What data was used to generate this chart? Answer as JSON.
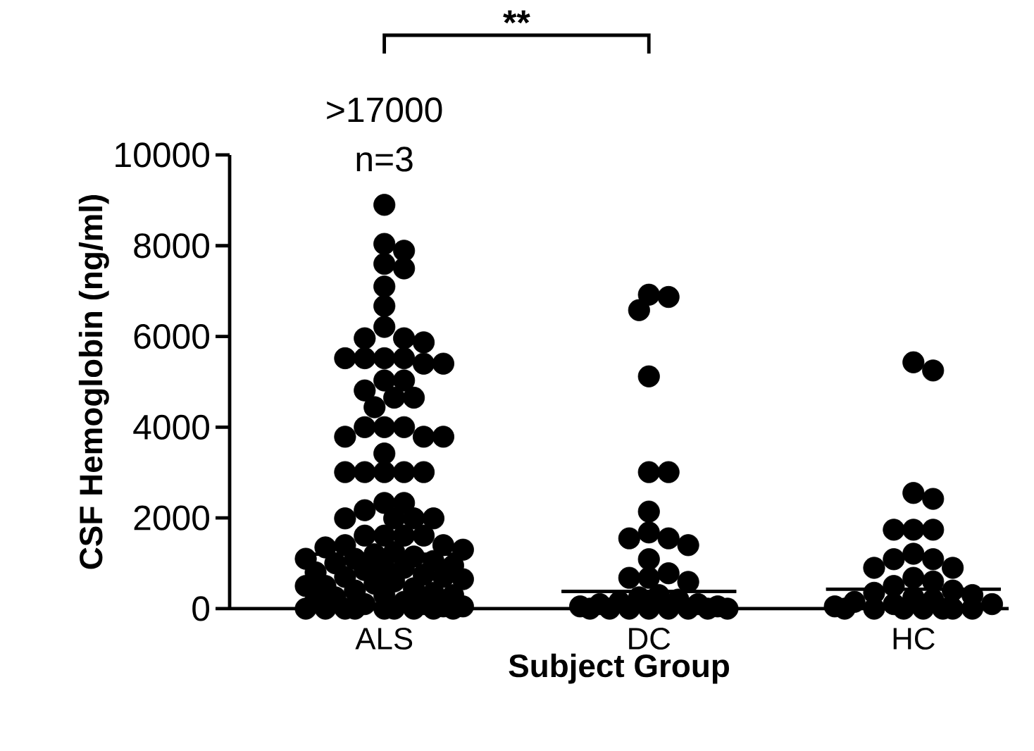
{
  "chart_data": {
    "type": "scatter",
    "xlabel": "Subject Group",
    "ylabel": "CSF Hemoglobin (ng/ml)",
    "categories": [
      "ALS",
      "DC",
      "HC"
    ],
    "ylim": [
      0,
      10000
    ],
    "yticks": [
      0,
      2000,
      4000,
      6000,
      8000,
      10000
    ],
    "marker": "circle",
    "grid": false,
    "annotations": [
      ">17000",
      "n=3",
      "**"
    ],
    "series": [
      {
        "color": "#000000",
        "x": [
          "ALS",
          "ALS",
          "ALS",
          "ALS",
          "ALS",
          "ALS",
          "ALS",
          "ALS",
          "ALS",
          "ALS",
          "ALS",
          "ALS",
          "ALS",
          "ALS",
          "ALS",
          "ALS",
          "ALS",
          "ALS",
          "ALS",
          "ALS",
          "ALS",
          "ALS",
          "ALS",
          "ALS",
          "ALS",
          "ALS",
          "ALS",
          "ALS",
          "ALS",
          "ALS",
          "ALS",
          "ALS",
          "ALS",
          "ALS",
          "ALS",
          "ALS",
          "ALS",
          "ALS",
          "ALS",
          "ALS",
          "ALS",
          "ALS",
          "ALS",
          "ALS",
          "ALS",
          "ALS",
          "ALS",
          "ALS",
          "ALS",
          "ALS",
          "ALS",
          "ALS",
          "ALS",
          "ALS",
          "ALS",
          "ALS",
          "ALS",
          "ALS",
          "ALS",
          "ALS",
          "ALS",
          "ALS",
          "ALS",
          "ALS",
          "ALS",
          "ALS",
          "ALS",
          "ALS",
          "ALS",
          "ALS",
          "ALS",
          "ALS",
          "ALS",
          "ALS",
          "ALS",
          "ALS",
          "ALS",
          "ALS",
          "ALS",
          "ALS",
          "ALS",
          "ALS",
          "ALS",
          "ALS",
          "ALS",
          "ALS",
          "ALS",
          "ALS",
          "ALS",
          "ALS",
          "ALS",
          "DC",
          "DC",
          "DC",
          "DC",
          "DC",
          "DC",
          "DC",
          "DC",
          "DC",
          "DC",
          "DC",
          "DC",
          "DC",
          "DC",
          "DC",
          "DC",
          "DC",
          "DC",
          "DC",
          "DC",
          "DC",
          "DC",
          "DC",
          "DC",
          "DC",
          "DC",
          "DC",
          "DC",
          "DC",
          "DC",
          "DC",
          "DC",
          "HC",
          "HC",
          "HC",
          "HC",
          "HC",
          "HC",
          "HC",
          "HC",
          "HC",
          "HC",
          "HC",
          "HC",
          "HC",
          "HC",
          "HC",
          "HC",
          "HC",
          "HC",
          "HC",
          "HC",
          "HC",
          "HC",
          "HC",
          "HC",
          "HC",
          "HC",
          "HC",
          "HC",
          "HC",
          "HC",
          "HC"
        ],
        "values": [
          8900,
          8040,
          7890,
          7600,
          7500,
          7100,
          6670,
          6210,
          5960,
          5960,
          5870,
          5520,
          5520,
          5520,
          5520,
          5400,
          5400,
          5030,
          5030,
          4810,
          4650,
          4650,
          4440,
          4000,
          4000,
          4000,
          3790,
          3790,
          3790,
          3420,
          3010,
          3010,
          3010,
          3010,
          3010,
          2330,
          2330,
          2170,
          1990,
          1990,
          1990,
          1990,
          1610,
          1610,
          1610,
          1610,
          1400,
          1400,
          1350,
          1300,
          1250,
          1200,
          1150,
          1100,
          1100,
          1050,
          1000,
          950,
          900,
          900,
          850,
          800,
          750,
          700,
          700,
          650,
          600,
          550,
          500,
          500,
          450,
          400,
          350,
          300,
          300,
          250,
          200,
          150,
          100,
          100,
          50,
          50,
          0,
          0,
          0,
          0,
          0,
          0,
          0,
          0,
          0,
          6920,
          6870,
          6580,
          5120,
          3010,
          3010,
          2140,
          1680,
          1550,
          1550,
          1400,
          1090,
          780,
          680,
          680,
          590,
          300,
          250,
          200,
          150,
          100,
          100,
          50,
          50,
          0,
          0,
          0,
          0,
          0,
          0,
          0,
          0,
          5430,
          5250,
          2550,
          2420,
          1740,
          1740,
          1740,
          1210,
          1090,
          1090,
          900,
          900,
          680,
          600,
          500,
          400,
          350,
          300,
          250,
          200,
          150,
          100,
          100,
          50,
          0,
          0,
          0,
          0,
          0,
          0,
          0
        ]
      },
      {
        "type": "box",
        "color": "#000000",
        "boxes": [
          {
            "q1": 1200,
            "median": 1200,
            "q3": 1200
          },
          {
            "q1": 380,
            "median": 380,
            "q3": 380
          },
          {
            "q1": 430,
            "median": 430,
            "q3": 430
          }
        ]
      }
    ]
  }
}
